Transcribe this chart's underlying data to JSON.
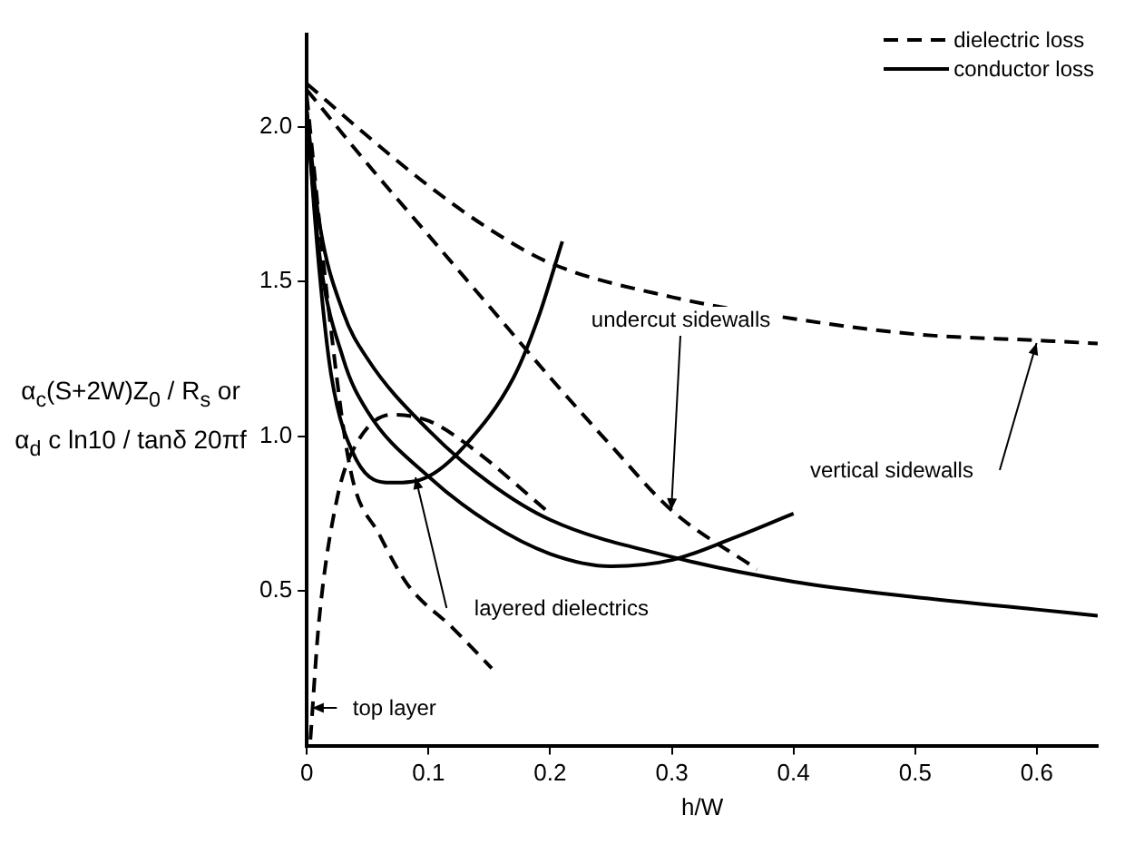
{
  "chart_data": {
    "type": "line",
    "xlabel": "h/W",
    "ylabel": "α$_{c}$(S+2W)Z$_{0}$ / R$_{s}$ or α$_{d}$ c ln10 / tanδ 20πf",
    "xlim": [
      0,
      0.65
    ],
    "ylim": [
      0,
      2.3
    ],
    "xticks": [
      0,
      {
        "value": 0.1,
        "label": "0.1"
      },
      {
        "value": 0.2,
        "label": "0.2"
      },
      {
        "value": 0.3,
        "label": "0.3"
      },
      {
        "value": 0.4,
        "label": "0.4"
      },
      {
        "value": 0.5,
        "label": "0.5"
      },
      {
        "value": 0.6,
        "label": "0.6"
      }
    ],
    "yticks": [
      0.5,
      {
        "value": 1,
        "label": "1.0"
      },
      1.5,
      {
        "value": 2,
        "label": "2.0"
      }
    ],
    "grid": false,
    "legend": "top right",
    "marker": "none",
    "series": [
      {
        "name": "dielectric loss",
        "color": "#000000",
        "line_style": "dashed",
        "x": [
          0,
          0.05,
          0.1,
          0.15,
          0.2,
          0.3,
          0.4,
          0.5,
          0.6,
          0.65
        ],
        "values": [
          2.14,
          1.97,
          1.81,
          1.67,
          1.56,
          1.45,
          1.38,
          1.33,
          1.31,
          1.3
        ]
      },
      {
        "color": "#000000",
        "line_style": "dashed",
        "x": [
          0,
          0.05,
          0.1,
          0.15,
          0.2,
          0.25,
          0.3,
          0.37
        ],
        "values": [
          2.12,
          1.88,
          1.65,
          1.42,
          1.19,
          0.97,
          0.76,
          0.57
        ]
      },
      {
        "color": "#000000",
        "line_style": "dashed",
        "x": [
          0,
          0.018,
          0.036,
          0.06,
          0.083,
          0.12,
          0.152
        ],
        "values": [
          2.1,
          1.41,
          0.89,
          0.68,
          0.52,
          0.38,
          0.25
        ]
      },
      {
        "color": "#000000",
        "line_style": "dashed",
        "x": [
          0.003,
          0.01,
          0.025,
          0.04,
          0.07,
          0.1,
          0.133,
          0.2
        ],
        "values": [
          0.02,
          0.4,
          0.8,
          0.97,
          1.07,
          1.05,
          0.97,
          0.75
        ]
      },
      {
        "name": "conductor loss",
        "color": "#000000",
        "line_style": "solid",
        "x": [
          0,
          0.01,
          0.03,
          0.05,
          0.1,
          0.15,
          0.2,
          0.3,
          0.4,
          0.5,
          0.6,
          0.65
        ],
        "values": [
          2.05,
          1.7,
          1.4,
          1.25,
          1.02,
          0.85,
          0.73,
          0.61,
          0.53,
          0.48,
          0.44,
          0.42
        ]
      },
      {
        "color": "#000000",
        "line_style": "solid",
        "x": [
          0,
          0.01,
          0.03,
          0.05,
          0.1,
          0.15,
          0.2,
          0.25,
          0.3,
          0.35,
          0.4
        ],
        "values": [
          2.05,
          1.6,
          1.25,
          1.08,
          0.87,
          0.72,
          0.62,
          0.58,
          0.6,
          0.67,
          0.75
        ]
      },
      {
        "color": "#000000",
        "line_style": "solid",
        "x": [
          0,
          0.01,
          0.02,
          0.04,
          0.07,
          0.1,
          0.13,
          0.17,
          0.19,
          0.21
        ],
        "values": [
          2.05,
          1.55,
          1.2,
          0.93,
          0.85,
          0.87,
          0.97,
          1.19,
          1.38,
          1.63
        ]
      }
    ],
    "annotations": [
      {
        "text": "undercut sidewalls",
        "x": 0.3,
        "y": 0.76
      },
      {
        "text": "vertical sidewalls",
        "x": 0.6,
        "y": 1.3
      },
      {
        "text": "layered dielectrics",
        "x": 0.09,
        "y": 0.87
      },
      {
        "text": "top layer",
        "x": 0.005,
        "y": 0.12
      }
    ]
  }
}
